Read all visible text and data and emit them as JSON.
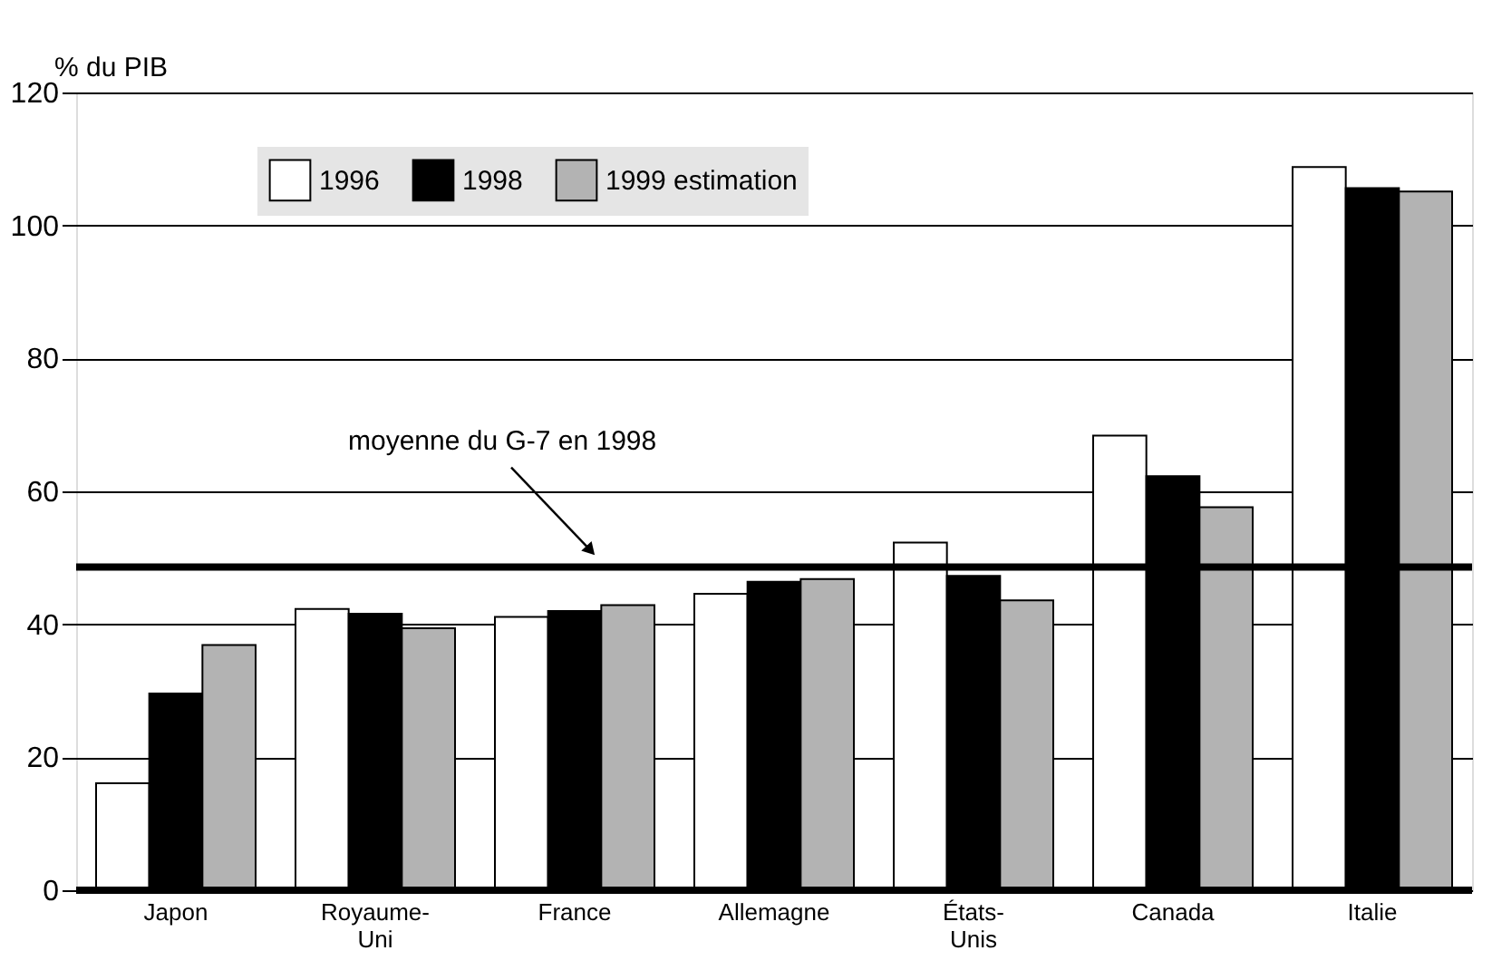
{
  "chart_data": {
    "type": "bar",
    "ylabel": "% du PIB",
    "categories": [
      "Japon",
      "Royaume-\nUni",
      "France",
      "Allemagne",
      "États-\nUnis",
      "Canada",
      "Italie"
    ],
    "series": [
      {
        "name": "1996",
        "color": "#ffffff",
        "values": [
          16.1,
          42.3,
          41.1,
          44.6,
          52.3,
          68.4,
          108.8
        ]
      },
      {
        "name": "1998",
        "color": "#000000",
        "values": [
          29.6,
          41.6,
          42.0,
          46.4,
          47.3,
          62.3,
          105.6
        ]
      },
      {
        "name": "1999 estimation",
        "color": "#b3b3b3",
        "values": [
          36.9,
          39.4,
          42.9,
          46.8,
          43.6,
          57.6,
          105.1
        ]
      }
    ],
    "ylim": [
      0,
      120
    ],
    "yticks": [
      0,
      20,
      40,
      60,
      80,
      100,
      120
    ],
    "grid": "y",
    "legend": "top left",
    "ref_lines": [
      {
        "axis": "y",
        "value": 48.6,
        "label": "moyenne du G-7 en 1998",
        "color": "#000000"
      }
    ]
  }
}
